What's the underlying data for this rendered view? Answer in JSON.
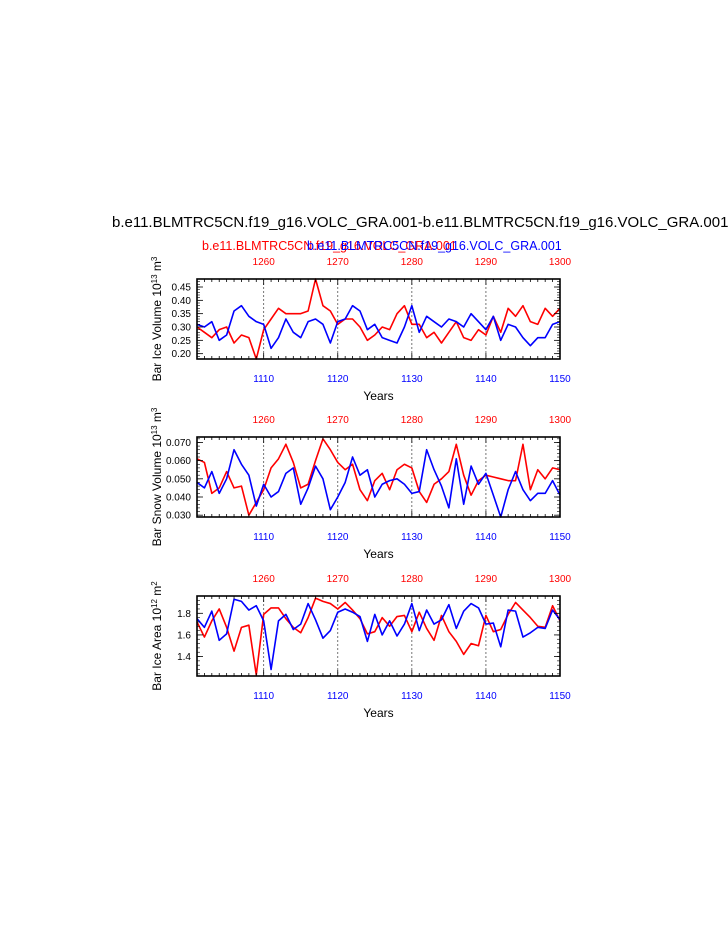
{
  "page": {
    "title": "b.e11.BLMTRC5CN.f19_g16.VOLC_GRA.001-b.e11.BLMTRC5CN.f19_g16.VOLC_GRA.001",
    "subtitle_red": "b.e11.BLMTRC5CN.f19_g16.VOLC_GRA.001",
    "subtitle_blue": "b.e11.BLMTRC5CN.f19_g16.VOLC_GRA.001"
  },
  "colors": {
    "series_a": "#ff0000",
    "series_b": "#0000ff",
    "axis": "#000000"
  },
  "chart_data": [
    {
      "type": "line",
      "ylabel": "Bar Ice Volume 10",
      "ylabel_exp": "13",
      "ylabel_unit": " m",
      "ylabel_unit_exp": "3",
      "xlabel": "Years",
      "xlim_bottom": [
        1101,
        1150
      ],
      "xlim_top": [
        1251,
        1300
      ],
      "ylim": [
        0.18,
        0.48
      ],
      "yticks": [
        0.2,
        0.25,
        0.3,
        0.35,
        0.4,
        0.45
      ],
      "yticklabels": [
        "0.20",
        "0.25",
        "0.30",
        "0.35",
        "0.40",
        "0.45"
      ],
      "bottom_ticks": [
        1110,
        1120,
        1130,
        1140,
        1150
      ],
      "top_ticks": [
        1260,
        1270,
        1280,
        1290,
        1300
      ],
      "grid_x": [
        1110,
        1120,
        1130,
        1140
      ],
      "series": [
        {
          "axis": "top",
          "x": [
            1251,
            1252,
            1253,
            1254,
            1255,
            1256,
            1257,
            1258,
            1259,
            1260,
            1261,
            1262,
            1263,
            1264,
            1265,
            1266,
            1267,
            1268,
            1269,
            1270,
            1271,
            1272,
            1273,
            1274,
            1275,
            1276,
            1277,
            1278,
            1279,
            1280,
            1281,
            1282,
            1283,
            1284,
            1285,
            1286,
            1287,
            1288,
            1289,
            1290,
            1291,
            1292,
            1293,
            1294,
            1295,
            1296,
            1297,
            1298,
            1299,
            1300
          ],
          "values": [
            0.3,
            0.28,
            0.26,
            0.29,
            0.3,
            0.24,
            0.27,
            0.26,
            0.18,
            0.29,
            0.33,
            0.37,
            0.35,
            0.35,
            0.35,
            0.36,
            0.48,
            0.38,
            0.36,
            0.31,
            0.33,
            0.33,
            0.3,
            0.25,
            0.27,
            0.3,
            0.29,
            0.35,
            0.38,
            0.31,
            0.31,
            0.26,
            0.28,
            0.24,
            0.28,
            0.32,
            0.26,
            0.25,
            0.29,
            0.27,
            0.34,
            0.28,
            0.37,
            0.34,
            0.38,
            0.32,
            0.31,
            0.37,
            0.34,
            0.37
          ]
        },
        {
          "axis": "bottom",
          "x": [
            1101,
            1102,
            1103,
            1104,
            1105,
            1106,
            1107,
            1108,
            1109,
            1110,
            1111,
            1112,
            1113,
            1114,
            1115,
            1116,
            1117,
            1118,
            1119,
            1120,
            1121,
            1122,
            1123,
            1124,
            1125,
            1126,
            1127,
            1128,
            1129,
            1130,
            1131,
            1132,
            1133,
            1134,
            1135,
            1136,
            1137,
            1138,
            1139,
            1140,
            1141,
            1142,
            1143,
            1144,
            1145,
            1146,
            1147,
            1148,
            1149,
            1150
          ],
          "values": [
            0.31,
            0.3,
            0.32,
            0.25,
            0.27,
            0.36,
            0.38,
            0.34,
            0.32,
            0.31,
            0.22,
            0.26,
            0.33,
            0.28,
            0.26,
            0.32,
            0.33,
            0.31,
            0.24,
            0.32,
            0.33,
            0.38,
            0.36,
            0.29,
            0.31,
            0.26,
            0.25,
            0.24,
            0.3,
            0.38,
            0.28,
            0.34,
            0.32,
            0.3,
            0.33,
            0.32,
            0.3,
            0.35,
            0.32,
            0.29,
            0.34,
            0.25,
            0.31,
            0.3,
            0.26,
            0.23,
            0.26,
            0.26,
            0.31,
            0.32
          ]
        }
      ]
    },
    {
      "type": "line",
      "ylabel": "Bar Snow Volume 10",
      "ylabel_exp": "13",
      "ylabel_unit": " m",
      "ylabel_unit_exp": "3",
      "xlabel": "Years",
      "xlim_bottom": [
        1101,
        1150
      ],
      "xlim_top": [
        1251,
        1300
      ],
      "ylim": [
        0.029,
        0.073
      ],
      "yticks": [
        0.03,
        0.04,
        0.05,
        0.06,
        0.07
      ],
      "yticklabels": [
        "0.030",
        "0.040",
        "0.050",
        "0.060",
        "0.070"
      ],
      "bottom_ticks": [
        1110,
        1120,
        1130,
        1140,
        1150
      ],
      "top_ticks": [
        1260,
        1270,
        1280,
        1290,
        1300
      ],
      "grid_x": [
        1110,
        1120,
        1130,
        1140
      ],
      "series": [
        {
          "axis": "top",
          "x": [
            1251,
            1252,
            1253,
            1254,
            1255,
            1256,
            1257,
            1258,
            1259,
            1260,
            1261,
            1262,
            1263,
            1264,
            1265,
            1266,
            1267,
            1268,
            1269,
            1270,
            1271,
            1272,
            1273,
            1274,
            1275,
            1276,
            1277,
            1278,
            1279,
            1280,
            1281,
            1282,
            1283,
            1284,
            1285,
            1286,
            1287,
            1288,
            1289,
            1290,
            1291,
            1292,
            1293,
            1294,
            1295,
            1296,
            1297,
            1298,
            1299,
            1300
          ],
          "values": [
            0.061,
            0.059,
            0.042,
            0.045,
            0.054,
            0.045,
            0.046,
            0.03,
            0.037,
            0.044,
            0.056,
            0.061,
            0.069,
            0.059,
            0.045,
            0.047,
            0.06,
            0.072,
            0.066,
            0.059,
            0.055,
            0.058,
            0.044,
            0.038,
            0.049,
            0.053,
            0.044,
            0.055,
            0.058,
            0.056,
            0.043,
            0.037,
            0.047,
            0.05,
            0.054,
            0.069,
            0.052,
            0.041,
            0.049,
            0.052,
            0.051,
            0.05,
            0.049,
            0.049,
            0.069,
            0.044,
            0.055,
            0.05,
            0.056,
            0.055
          ]
        },
        {
          "axis": "bottom",
          "x": [
            1101,
            1102,
            1103,
            1104,
            1105,
            1106,
            1107,
            1108,
            1109,
            1110,
            1111,
            1112,
            1113,
            1114,
            1115,
            1116,
            1117,
            1118,
            1119,
            1120,
            1121,
            1122,
            1123,
            1124,
            1125,
            1126,
            1127,
            1128,
            1129,
            1130,
            1131,
            1132,
            1133,
            1134,
            1135,
            1136,
            1137,
            1138,
            1139,
            1140,
            1141,
            1142,
            1143,
            1144,
            1145,
            1146,
            1147,
            1148,
            1149,
            1150
          ],
          "values": [
            0.048,
            0.045,
            0.054,
            0.042,
            0.05,
            0.066,
            0.058,
            0.052,
            0.035,
            0.047,
            0.04,
            0.043,
            0.053,
            0.056,
            0.036,
            0.045,
            0.057,
            0.05,
            0.033,
            0.04,
            0.048,
            0.062,
            0.052,
            0.055,
            0.04,
            0.047,
            0.049,
            0.05,
            0.047,
            0.042,
            0.043,
            0.066,
            0.055,
            0.046,
            0.034,
            0.061,
            0.036,
            0.057,
            0.047,
            0.053,
            0.041,
            0.029,
            0.044,
            0.054,
            0.044,
            0.038,
            0.042,
            0.042,
            0.049,
            0.041
          ]
        }
      ]
    },
    {
      "type": "line",
      "ylabel": "Bar Ice Area 10",
      "ylabel_exp": "12",
      "ylabel_unit": " m",
      "ylabel_unit_exp": "2",
      "xlabel": "Years",
      "xlim_bottom": [
        1101,
        1150
      ],
      "xlim_top": [
        1251,
        1300
      ],
      "ylim": [
        1.22,
        1.96
      ],
      "yticks": [
        1.4,
        1.6,
        1.8
      ],
      "yticklabels": [
        "1.4",
        "1.6",
        "1.8"
      ],
      "bottom_ticks": [
        1110,
        1120,
        1130,
        1140,
        1150
      ],
      "top_ticks": [
        1260,
        1270,
        1280,
        1290,
        1300
      ],
      "grid_x": [
        1110,
        1120,
        1130,
        1140
      ],
      "series": [
        {
          "axis": "top",
          "x": [
            1251,
            1252,
            1253,
            1254,
            1255,
            1256,
            1257,
            1258,
            1259,
            1260,
            1261,
            1262,
            1263,
            1264,
            1265,
            1266,
            1267,
            1268,
            1269,
            1270,
            1271,
            1272,
            1273,
            1274,
            1275,
            1276,
            1277,
            1278,
            1279,
            1280,
            1281,
            1282,
            1283,
            1284,
            1285,
            1286,
            1287,
            1288,
            1289,
            1290,
            1291,
            1292,
            1293,
            1294,
            1295,
            1296,
            1297,
            1298,
            1299,
            1300
          ],
          "values": [
            1.72,
            1.58,
            1.73,
            1.84,
            1.67,
            1.45,
            1.67,
            1.69,
            1.23,
            1.79,
            1.85,
            1.85,
            1.75,
            1.67,
            1.62,
            1.76,
            1.94,
            1.91,
            1.89,
            1.84,
            1.9,
            1.83,
            1.75,
            1.61,
            1.63,
            1.76,
            1.68,
            1.77,
            1.78,
            1.63,
            1.81,
            1.66,
            1.55,
            1.78,
            1.63,
            1.54,
            1.42,
            1.52,
            1.5,
            1.78,
            1.63,
            1.65,
            1.79,
            1.9,
            1.83,
            1.76,
            1.68,
            1.67,
            1.87,
            1.73
          ]
        },
        {
          "axis": "bottom",
          "x": [
            1101,
            1102,
            1103,
            1104,
            1105,
            1106,
            1107,
            1108,
            1109,
            1110,
            1111,
            1112,
            1113,
            1114,
            1115,
            1116,
            1117,
            1118,
            1119,
            1120,
            1121,
            1122,
            1123,
            1124,
            1125,
            1126,
            1127,
            1128,
            1129,
            1130,
            1131,
            1132,
            1133,
            1134,
            1135,
            1136,
            1137,
            1138,
            1139,
            1140,
            1141,
            1142,
            1143,
            1144,
            1145,
            1146,
            1147,
            1148,
            1149,
            1150
          ],
          "values": [
            1.75,
            1.67,
            1.82,
            1.55,
            1.61,
            1.93,
            1.91,
            1.83,
            1.87,
            1.73,
            1.28,
            1.73,
            1.79,
            1.65,
            1.7,
            1.89,
            1.74,
            1.57,
            1.64,
            1.81,
            1.84,
            1.81,
            1.77,
            1.54,
            1.79,
            1.6,
            1.73,
            1.59,
            1.7,
            1.89,
            1.64,
            1.83,
            1.7,
            1.74,
            1.88,
            1.66,
            1.82,
            1.89,
            1.85,
            1.7,
            1.71,
            1.49,
            1.83,
            1.82,
            1.58,
            1.62,
            1.67,
            1.66,
            1.83,
            1.74
          ]
        }
      ]
    }
  ]
}
